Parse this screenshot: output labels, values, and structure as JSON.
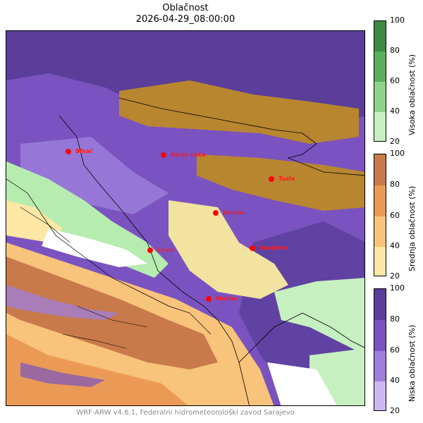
{
  "title": "Oblačnost",
  "datetime": "2026-04-29_08:00:00",
  "footer": "WRF-ARW v4.6.1, Federalni hidrometeorološki zavod Sarajevo",
  "colorbars": [
    {
      "label": "Visoka oblačnost (%)",
      "ticks": [
        "100",
        "80",
        "60",
        "40",
        "20"
      ],
      "colors": [
        "#3e8a45",
        "#5aaf5c",
        "#8fd48a",
        "#c7f0c0"
      ]
    },
    {
      "label": "Srednja oblačnost (%)",
      "ticks": [
        "100",
        "80",
        "60",
        "40",
        "20"
      ],
      "colors": [
        "#c97a4a",
        "#eb9a55",
        "#f8c37a",
        "#fde7a4"
      ]
    },
    {
      "label": "Niska oblačnost (%)",
      "ticks": [
        "100",
        "80",
        "60",
        "40",
        "20"
      ],
      "colors": [
        "#5a3e9a",
        "#7a53c0",
        "#9d7fdc",
        "#cdb8f3"
      ]
    }
  ],
  "cities": [
    {
      "name": "Bihać"
    },
    {
      "name": "Banja Luka"
    },
    {
      "name": "Tuzla"
    },
    {
      "name": "Zenica"
    },
    {
      "name": "Livno"
    },
    {
      "name": "Sarajevo"
    },
    {
      "name": "Mostar"
    }
  ],
  "city_color": "#ff0000"
}
